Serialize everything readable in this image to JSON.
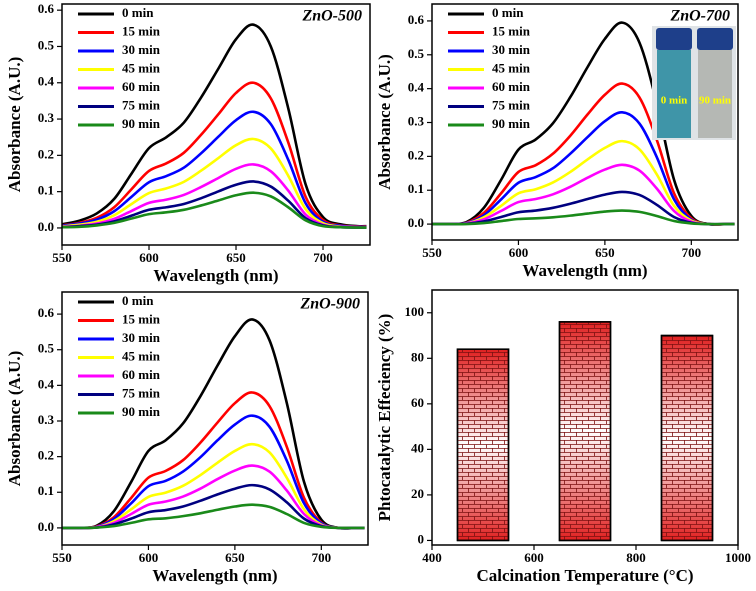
{
  "chart_data": [
    {
      "type": "line",
      "title": "ZnO-500",
      "xlabel": "Wavelength (nm)",
      "ylabel": "Absorbance (A.U.)",
      "x": [
        550,
        560,
        570,
        580,
        590,
        600,
        610,
        620,
        630,
        640,
        650,
        660,
        670,
        680,
        690,
        700,
        710,
        720,
        725
      ],
      "xlim": [
        550,
        727
      ],
      "ylim": [
        -0.047,
        0.617
      ],
      "xticks": [
        550,
        600,
        650,
        700
      ],
      "yticks": [
        {
          "value": 0,
          "label": "0.0"
        },
        0.1,
        0.2,
        0.3,
        0.4,
        0.5,
        0.6
      ],
      "series": [
        {
          "name": "0 min",
          "color": "#000000",
          "values": [
            0.01,
            0.02,
            0.04,
            0.08,
            0.15,
            0.22,
            0.25,
            0.29,
            0.36,
            0.44,
            0.52,
            0.56,
            0.5,
            0.33,
            0.12,
            0.03,
            0.01,
            0.005,
            0.005
          ]
        },
        {
          "name": "15 min",
          "color": "#ff0000",
          "values": [
            0.007,
            0.014,
            0.028,
            0.057,
            0.107,
            0.157,
            0.178,
            0.207,
            0.257,
            0.314,
            0.372,
            0.4,
            0.357,
            0.236,
            0.086,
            0.022,
            0.007,
            0.004,
            0.004
          ]
        },
        {
          "name": "30 min",
          "color": "#0000ff",
          "values": [
            0.006,
            0.012,
            0.023,
            0.046,
            0.086,
            0.126,
            0.143,
            0.166,
            0.206,
            0.252,
            0.297,
            0.32,
            0.286,
            0.188,
            0.068,
            0.017,
            0.006,
            0.003,
            0.003
          ]
        },
        {
          "name": "45 min",
          "color": "#ffff00",
          "values": [
            0.004,
            0.009,
            0.017,
            0.035,
            0.066,
            0.096,
            0.109,
            0.127,
            0.158,
            0.193,
            0.228,
            0.245,
            0.219,
            0.144,
            0.052,
            0.013,
            0.004,
            0.002,
            0.002
          ]
        },
        {
          "name": "60 min",
          "color": "#ff00ff",
          "values": [
            0.003,
            0.006,
            0.012,
            0.025,
            0.047,
            0.069,
            0.078,
            0.091,
            0.113,
            0.138,
            0.163,
            0.175,
            0.156,
            0.103,
            0.037,
            0.009,
            0.003,
            0.002,
            0.002
          ]
        },
        {
          "name": "75 min",
          "color": "#000080",
          "values": [
            0.002,
            0.005,
            0.009,
            0.018,
            0.034,
            0.05,
            0.057,
            0.066,
            0.082,
            0.101,
            0.119,
            0.128,
            0.114,
            0.075,
            0.027,
            0.007,
            0.002,
            0.001,
            0.001
          ]
        },
        {
          "name": "90 min",
          "color": "#1a8a1a",
          "values": [
            0.002,
            0.003,
            0.007,
            0.014,
            0.026,
            0.038,
            0.043,
            0.05,
            0.062,
            0.076,
            0.09,
            0.097,
            0.087,
            0.057,
            0.021,
            0.005,
            0.002,
            0.001,
            0.001
          ]
        }
      ]
    },
    {
      "type": "line",
      "title": "ZnO-700",
      "xlabel": "Wavelength (nm)",
      "ylabel": "Absorbance (A.U.)",
      "inset_labels": [
        "0 min",
        "90 min"
      ],
      "x": [
        550,
        560,
        570,
        580,
        590,
        600,
        610,
        620,
        630,
        640,
        650,
        660,
        670,
        680,
        690,
        700,
        710,
        720,
        725
      ],
      "xlim": [
        550,
        727
      ],
      "ylim": [
        -0.047,
        0.65
      ],
      "xticks": [
        550,
        600,
        650,
        700
      ],
      "yticks": [
        {
          "value": 0,
          "label": "0.0"
        },
        0.1,
        0.2,
        0.3,
        0.4,
        0.5,
        0.6
      ],
      "series": [
        {
          "name": "0 min",
          "color": "#000000",
          "values": [
            0,
            0,
            0.006,
            0.048,
            0.131,
            0.22,
            0.25,
            0.298,
            0.375,
            0.464,
            0.547,
            0.595,
            0.536,
            0.357,
            0.131,
            0.024,
            0,
            0,
            0
          ]
        },
        {
          "name": "15 min",
          "color": "#ff0000",
          "values": [
            0,
            0,
            0.004,
            0.033,
            0.091,
            0.154,
            0.174,
            0.208,
            0.261,
            0.324,
            0.382,
            0.415,
            0.374,
            0.249,
            0.091,
            0.017,
            0,
            0,
            0
          ]
        },
        {
          "name": "30 min",
          "color": "#0000ff",
          "values": [
            0,
            0,
            0.003,
            0.026,
            0.073,
            0.122,
            0.139,
            0.165,
            0.208,
            0.257,
            0.304,
            0.33,
            0.297,
            0.198,
            0.073,
            0.013,
            0,
            0,
            0
          ]
        },
        {
          "name": "45 min",
          "color": "#ffff00",
          "values": [
            0,
            0,
            0.002,
            0.02,
            0.054,
            0.091,
            0.103,
            0.123,
            0.154,
            0.191,
            0.225,
            0.245,
            0.221,
            0.147,
            0.054,
            0.01,
            0,
            0,
            0
          ]
        },
        {
          "name": "60 min",
          "color": "#ff00ff",
          "values": [
            0,
            0,
            0.002,
            0.014,
            0.039,
            0.065,
            0.074,
            0.088,
            0.11,
            0.137,
            0.161,
            0.175,
            0.158,
            0.105,
            0.039,
            0.007,
            0,
            0,
            0
          ]
        },
        {
          "name": "75 min",
          "color": "#000080",
          "values": [
            0,
            0,
            0.001,
            0.008,
            0.021,
            0.035,
            0.04,
            0.048,
            0.06,
            0.074,
            0.087,
            0.095,
            0.086,
            0.057,
            0.021,
            0.004,
            0,
            0,
            0
          ]
        },
        {
          "name": "90 min",
          "color": "#1a8a1a",
          "values": [
            0,
            0,
            0,
            0.003,
            0.009,
            0.015,
            0.017,
            0.02,
            0.025,
            0.031,
            0.037,
            0.04,
            0.036,
            0.024,
            0.009,
            0.002,
            0,
            0,
            0
          ]
        }
      ]
    },
    {
      "type": "line",
      "title": "ZnO-900",
      "xlabel": "Wavelength (nm)",
      "ylabel": "Absorbance (A.U.)",
      "x": [
        550,
        560,
        570,
        580,
        590,
        600,
        610,
        620,
        630,
        640,
        650,
        660,
        670,
        680,
        690,
        700,
        710,
        720,
        725
      ],
      "xlim": [
        550,
        727
      ],
      "ylim": [
        -0.048,
        0.662
      ],
      "xticks": [
        550,
        600,
        650,
        700
      ],
      "yticks": [
        {
          "value": 0,
          "label": "0.0"
        },
        0.1,
        0.2,
        0.3,
        0.4,
        0.5,
        0.6
      ],
      "series": [
        {
          "name": "0 min",
          "color": "#000000",
          "values": [
            0,
            0,
            0.006,
            0.047,
            0.129,
            0.216,
            0.246,
            0.293,
            0.369,
            0.456,
            0.538,
            0.585,
            0.527,
            0.351,
            0.129,
            0.023,
            0,
            0,
            0
          ]
        },
        {
          "name": "15 min",
          "color": "#ff0000",
          "values": [
            0,
            0,
            0.004,
            0.03,
            0.084,
            0.141,
            0.16,
            0.19,
            0.239,
            0.296,
            0.35,
            0.38,
            0.342,
            0.228,
            0.084,
            0.015,
            0,
            0,
            0
          ]
        },
        {
          "name": "30 min",
          "color": "#0000ff",
          "values": [
            0,
            0,
            0.003,
            0.025,
            0.069,
            0.117,
            0.132,
            0.158,
            0.198,
            0.246,
            0.29,
            0.315,
            0.284,
            0.189,
            0.069,
            0.013,
            0,
            0,
            0
          ]
        },
        {
          "name": "45 min",
          "color": "#ffff00",
          "values": [
            0,
            0,
            0.002,
            0.019,
            0.052,
            0.087,
            0.099,
            0.118,
            0.148,
            0.183,
            0.216,
            0.235,
            0.212,
            0.141,
            0.052,
            0.009,
            0,
            0,
            0
          ]
        },
        {
          "name": "60 min",
          "color": "#ff00ff",
          "values": [
            0,
            0,
            0.002,
            0.014,
            0.039,
            0.065,
            0.074,
            0.088,
            0.11,
            0.137,
            0.161,
            0.175,
            0.158,
            0.105,
            0.039,
            0.007,
            0,
            0,
            0
          ]
        },
        {
          "name": "75 min",
          "color": "#000080",
          "values": [
            0,
            0,
            0.001,
            0.01,
            0.026,
            0.044,
            0.05,
            0.06,
            0.076,
            0.094,
            0.11,
            0.12,
            0.108,
            0.072,
            0.026,
            0.005,
            0,
            0,
            0
          ]
        },
        {
          "name": "90 min",
          "color": "#1a8a1a",
          "values": [
            0,
            0,
            0.001,
            0.005,
            0.014,
            0.024,
            0.027,
            0.033,
            0.041,
            0.051,
            0.06,
            0.065,
            0.059,
            0.039,
            0.014,
            0.003,
            0,
            0,
            0
          ]
        }
      ]
    },
    {
      "type": "bar",
      "xlabel": "Calcination Temperature (°C)",
      "ylabel": "Phtocatalytic Effeciency (%)",
      "x": [
        500,
        700,
        900
      ],
      "values": [
        84,
        96,
        90
      ],
      "color": "#e02020",
      "xlim": [
        400,
        1000
      ],
      "ylim": [
        -2,
        110
      ],
      "xticks": [
        400,
        600,
        800,
        1000
      ],
      "yticks": [
        0,
        20,
        40,
        60,
        80,
        100
      ]
    }
  ]
}
